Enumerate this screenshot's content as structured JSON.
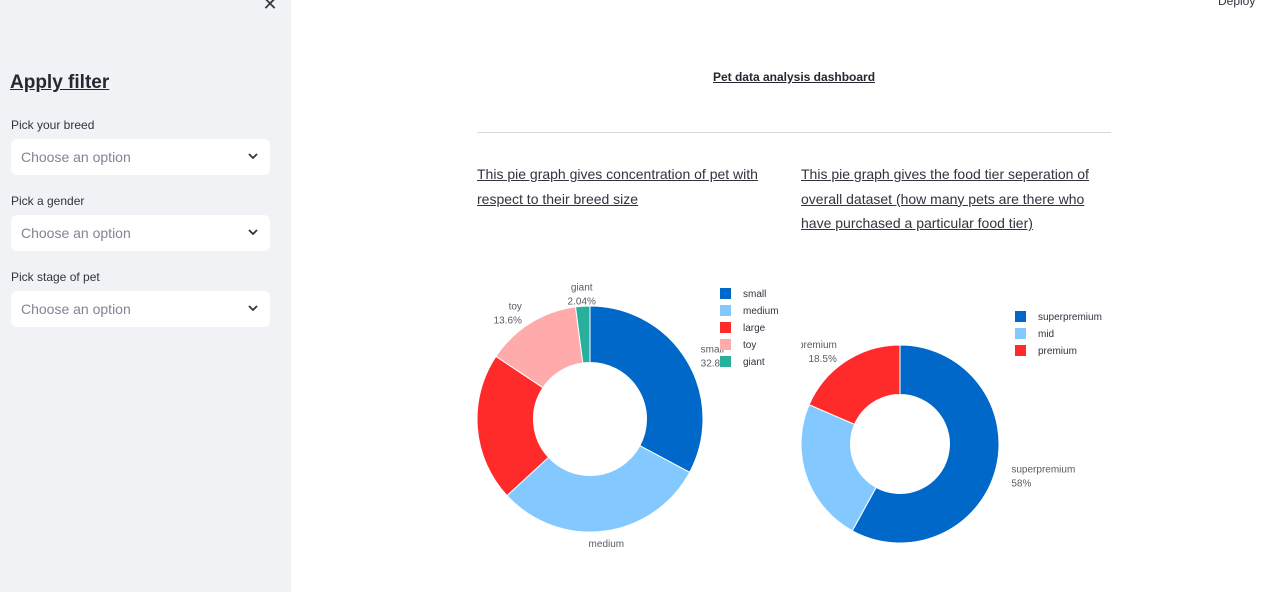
{
  "sidebar": {
    "title": "Apply filter",
    "filters": [
      {
        "label": "Pick your breed",
        "placeholder": "Choose an option"
      },
      {
        "label": "Pick a gender",
        "placeholder": "Choose an option"
      },
      {
        "label": "Pick stage of pet",
        "placeholder": "Choose an option"
      }
    ],
    "close_icon": "close-icon"
  },
  "header": {
    "deploy_label": "Deploy"
  },
  "main": {
    "title": "Pet data analysis dashboard",
    "descriptions": [
      "This pie graph gives concentration of pet with respect to their breed size",
      "This pie graph gives the food tier seperation of overall dataset (how many pets are there who have purchased a particular food tier)"
    ]
  },
  "chart_data": [
    {
      "type": "pie",
      "hole": 0.5,
      "categories": [
        "small",
        "medium",
        "large",
        "toy",
        "giant"
      ],
      "values": [
        32.8,
        30.3,
        21.2,
        13.6,
        2.04
      ],
      "data_labels": [
        {
          "name": "small",
          "percent": "32.8%"
        },
        {
          "name": "medium",
          "percent": "30.3%"
        },
        {
          "name": "large",
          "percent": "21.2%"
        },
        {
          "name": "toy",
          "percent": "13.6%"
        },
        {
          "name": "giant",
          "percent": "2.04%"
        }
      ],
      "colors": [
        "#0068c9",
        "#83c9ff",
        "#ff2b2b",
        "#ffabab",
        "#29b09d"
      ],
      "legend": "top-right"
    },
    {
      "type": "pie",
      "hole": 0.5,
      "categories": [
        "superpremium",
        "mid",
        "premium"
      ],
      "values": [
        58,
        23.5,
        18.5
      ],
      "data_labels": [
        {
          "name": "superpremium",
          "percent": "58%"
        },
        {
          "name": "mid",
          "percent": "23.5%"
        },
        {
          "name": "premium",
          "percent": "18.5%"
        }
      ],
      "colors": [
        "#0068c9",
        "#83c9ff",
        "#ff2b2b"
      ],
      "legend": "top-right"
    }
  ]
}
